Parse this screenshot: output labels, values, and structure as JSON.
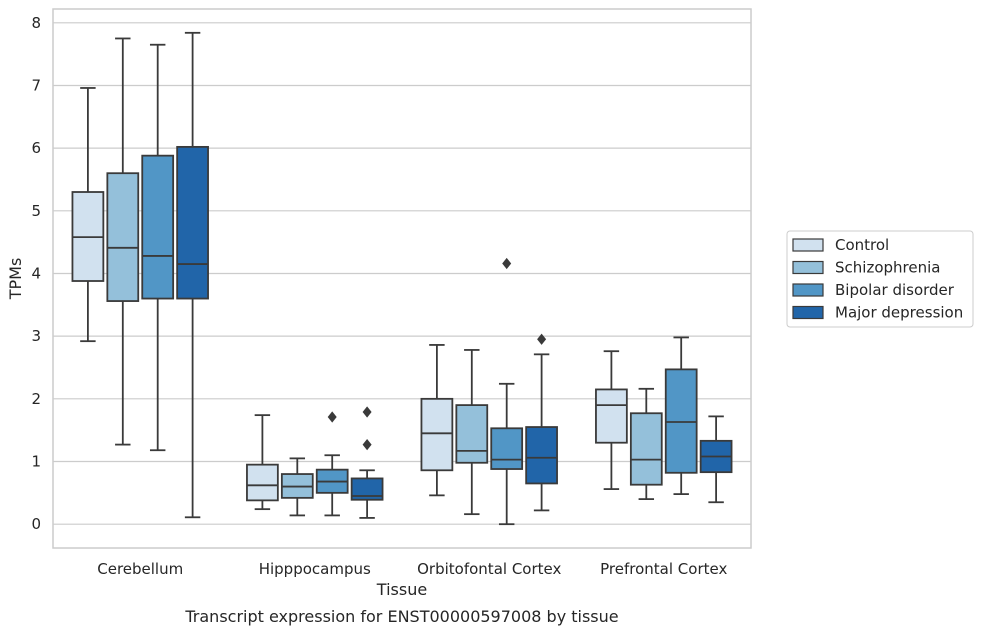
{
  "chart_data": {
    "type": "box",
    "title": "",
    "caption": "Transcript expression for ENST00000597008 by tissue",
    "xlabel": "Tissue",
    "ylabel": "TPMs",
    "ylim": [
      -0.38,
      8.22
    ],
    "yticks": [
      0,
      1,
      2,
      3,
      4,
      5,
      6,
      7,
      8
    ],
    "grid": "horizontal",
    "legend_position": "right",
    "categories": [
      "Cerebellum",
      "Hipppocampus",
      "Orbitofontal Cortex",
      "Prefrontal Cortex"
    ],
    "series": [
      {
        "name": "Control",
        "color": "#d1e1ef",
        "boxes": [
          {
            "min": 2.92,
            "q1": 3.88,
            "median": 4.58,
            "q3": 5.3,
            "max": 6.96,
            "outliers": []
          },
          {
            "min": 0.24,
            "q1": 0.38,
            "median": 0.62,
            "q3": 0.95,
            "max": 1.74,
            "outliers": []
          },
          {
            "min": 0.46,
            "q1": 0.86,
            "median": 1.45,
            "q3": 2.0,
            "max": 2.86,
            "outliers": []
          },
          {
            "min": 0.56,
            "q1": 1.3,
            "median": 1.9,
            "q3": 2.15,
            "max": 2.76,
            "outliers": []
          }
        ]
      },
      {
        "name": "Schizophrenia",
        "color": "#94c0da",
        "boxes": [
          {
            "min": 1.27,
            "q1": 3.56,
            "median": 4.41,
            "q3": 5.6,
            "max": 7.75,
            "outliers": []
          },
          {
            "min": 0.14,
            "q1": 0.42,
            "median": 0.6,
            "q3": 0.8,
            "max": 1.05,
            "outliers": []
          },
          {
            "min": 0.16,
            "q1": 0.98,
            "median": 1.17,
            "q3": 1.9,
            "max": 2.78,
            "outliers": []
          },
          {
            "min": 0.4,
            "q1": 0.63,
            "median": 1.03,
            "q3": 1.77,
            "max": 2.16,
            "outliers": []
          }
        ]
      },
      {
        "name": "Bipolar disorder",
        "color": "#5196c6",
        "boxes": [
          {
            "min": 1.18,
            "q1": 3.6,
            "median": 4.28,
            "q3": 5.88,
            "max": 7.65,
            "outliers": []
          },
          {
            "min": 0.14,
            "q1": 0.5,
            "median": 0.68,
            "q3": 0.87,
            "max": 1.1,
            "outliers": [
              1.71
            ]
          },
          {
            "min": 0.0,
            "q1": 0.88,
            "median": 1.03,
            "q3": 1.53,
            "max": 2.24,
            "outliers": [
              4.16
            ]
          },
          {
            "min": 0.48,
            "q1": 0.82,
            "median": 1.63,
            "q3": 2.47,
            "max": 2.98,
            "outliers": []
          }
        ]
      },
      {
        "name": "Major depression",
        "color": "#2165a9",
        "boxes": [
          {
            "min": 0.11,
            "q1": 3.6,
            "median": 4.15,
            "q3": 6.02,
            "max": 7.84,
            "outliers": []
          },
          {
            "min": 0.1,
            "q1": 0.39,
            "median": 0.45,
            "q3": 0.73,
            "max": 0.86,
            "outliers": [
              1.27,
              1.79
            ]
          },
          {
            "min": 0.22,
            "q1": 0.65,
            "median": 1.06,
            "q3": 1.55,
            "max": 2.71,
            "outliers": [
              2.95
            ]
          },
          {
            "min": 0.35,
            "q1": 0.83,
            "median": 1.08,
            "q3": 1.33,
            "max": 1.72,
            "outliers": []
          }
        ]
      }
    ]
  }
}
